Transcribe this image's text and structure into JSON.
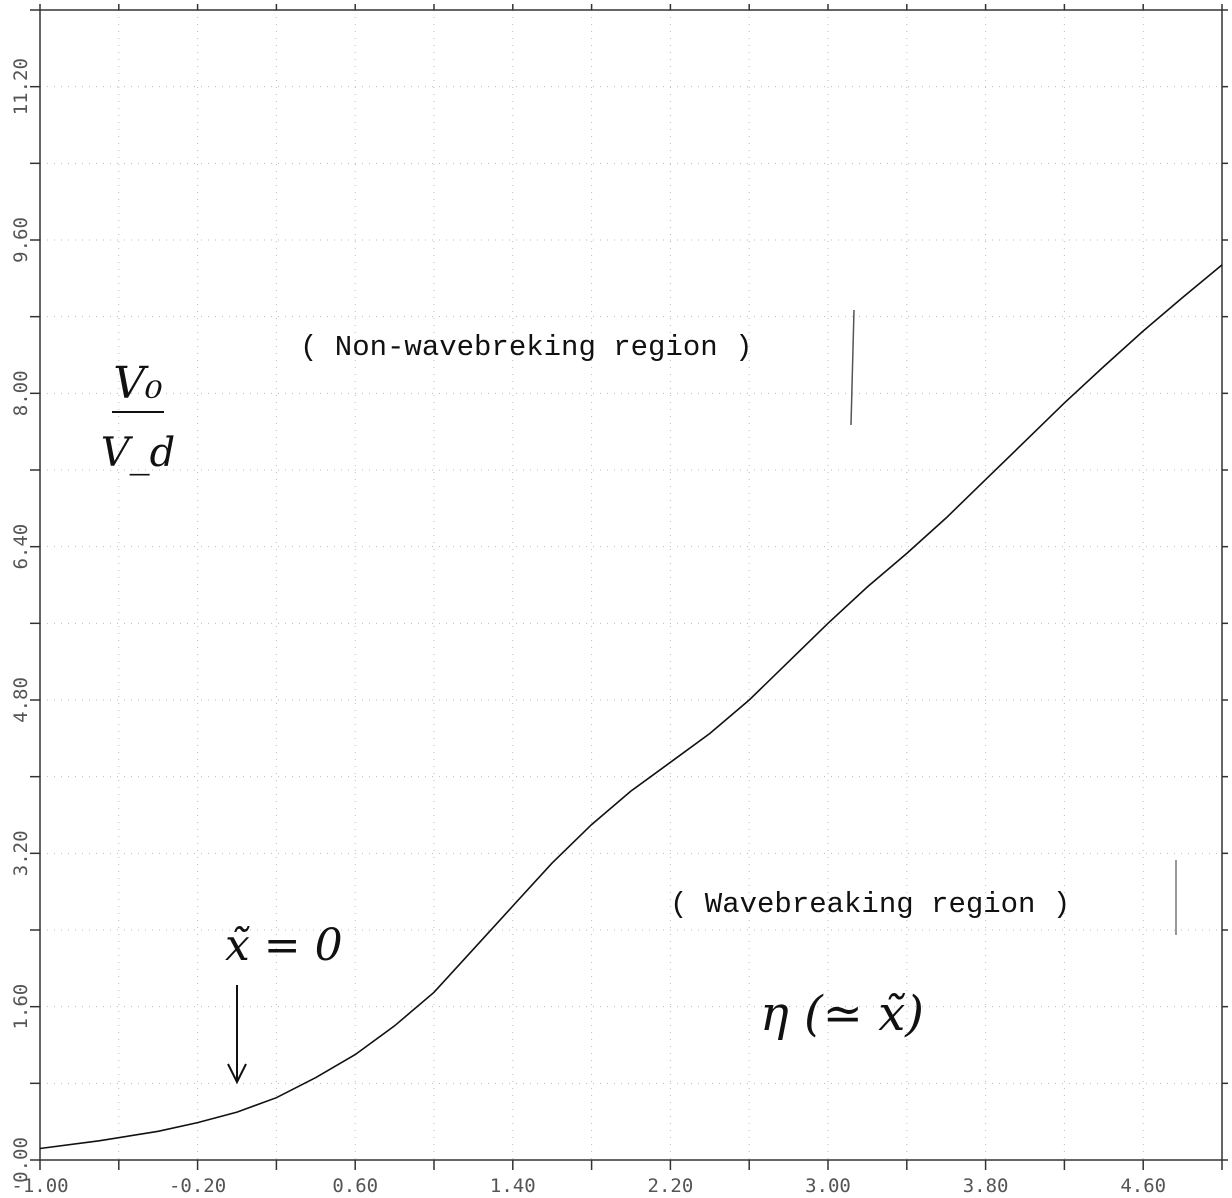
{
  "chart_data": {
    "type": "line",
    "xlabel": "η (≃ x̃)",
    "ylabel_numerator": "V₀",
    "ylabel_denominator": "V_d",
    "xlim": [
      -1.0,
      5.0
    ],
    "ylim": [
      0.0,
      12.0
    ],
    "x_ticks": [
      -1.0,
      -0.6,
      -0.2,
      0.2,
      0.6,
      1.0,
      1.4,
      1.8,
      2.2,
      2.6,
      3.0,
      3.4,
      3.8,
      4.2,
      4.6,
      5.0
    ],
    "x_tick_labels": [
      "-1.00",
      "-0.20",
      "0.60",
      "1.40",
      "2.20",
      "3.00",
      "3.80",
      "4.60"
    ],
    "x_tick_label_values": [
      -1.0,
      -0.2,
      0.6,
      1.4,
      2.2,
      3.0,
      3.8,
      4.6
    ],
    "y_ticks": [
      0.0,
      0.8,
      1.6,
      2.4,
      3.2,
      4.0,
      4.8,
      5.6,
      6.4,
      7.2,
      8.0,
      8.8,
      9.6,
      10.4,
      11.2,
      12.0
    ],
    "y_tick_labels": [
      "0.00",
      "1.60",
      "3.20",
      "4.80",
      "6.40",
      "8.00",
      "9.60",
      "11.20"
    ],
    "y_tick_label_values": [
      0.0,
      1.6,
      3.2,
      4.8,
      6.4,
      8.0,
      9.6,
      11.2
    ],
    "grid": true,
    "series": [
      {
        "x": [
          -1.0,
          -0.7,
          -0.4,
          -0.2,
          0.0,
          0.2,
          0.4,
          0.6,
          0.8,
          1.0,
          1.2,
          1.4,
          1.6,
          1.8,
          2.0,
          2.2,
          2.4,
          2.6,
          2.8,
          3.0,
          3.2,
          3.4,
          3.6,
          3.8,
          4.0,
          4.2,
          4.4,
          4.6,
          4.8,
          5.0
        ],
        "y": [
          0.12,
          0.2,
          0.3,
          0.39,
          0.5,
          0.65,
          0.86,
          1.1,
          1.4,
          1.75,
          2.2,
          2.65,
          3.1,
          3.5,
          3.85,
          4.15,
          4.45,
          4.8,
          5.2,
          5.6,
          5.98,
          6.33,
          6.7,
          7.1,
          7.5,
          7.9,
          8.28,
          8.65,
          9.0,
          9.34
        ]
      }
    ],
    "annotations": {
      "non_wavebreaking": "( Non-wavebreking region )",
      "wavebreaking": "( Wavebreaking region )",
      "x_zero": "x̃ = 0",
      "x_zero_at": 0.0
    }
  }
}
